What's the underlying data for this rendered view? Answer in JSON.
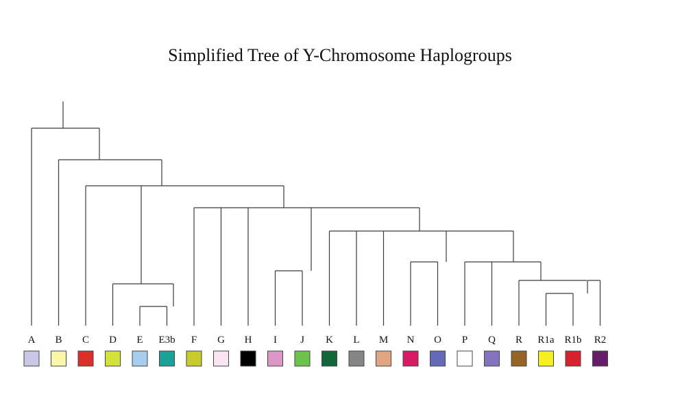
{
  "title": "Simplified Tree of Y-Chromosome Haplogroups",
  "leaves": [
    {
      "id": "A",
      "color": "#c9c6e6"
    },
    {
      "id": "B",
      "color": "#fbf7a8"
    },
    {
      "id": "C",
      "color": "#d9302a"
    },
    {
      "id": "D",
      "color": "#d2e23a"
    },
    {
      "id": "E",
      "color": "#a6cdee"
    },
    {
      "id": "E3b",
      "color": "#1aa198"
    },
    {
      "id": "F",
      "color": "#c8cb2c"
    },
    {
      "id": "G",
      "color": "#fbe4f2"
    },
    {
      "id": "H",
      "color": "#000000"
    },
    {
      "id": "I",
      "color": "#dc97c8"
    },
    {
      "id": "J",
      "color": "#6cc34a"
    },
    {
      "id": "K",
      "color": "#10683a"
    },
    {
      "id": "L",
      "color": "#858585"
    },
    {
      "id": "M",
      "color": "#e2a582"
    },
    {
      "id": "N",
      "color": "#d61b64"
    },
    {
      "id": "O",
      "color": "#6469b8"
    },
    {
      "id": "P",
      "color": "#ffffff"
    },
    {
      "id": "Q",
      "color": "#8573c0"
    },
    {
      "id": "R",
      "color": "#966525"
    },
    {
      "id": "R1a",
      "color": "#f6ef21"
    },
    {
      "id": "R1b",
      "color": "#d7222d"
    },
    {
      "id": "R2",
      "color": "#661d6a"
    }
  ],
  "tree_edges": [
    [
      "root",
      "n1"
    ],
    [
      "n1",
      "A"
    ],
    [
      "n1",
      "n2"
    ],
    [
      "n2",
      "B"
    ],
    [
      "n2",
      "n3"
    ],
    [
      "n3",
      "C"
    ],
    [
      "n3",
      "n4"
    ],
    [
      "n3",
      "n5"
    ],
    [
      "n4",
      "D"
    ],
    [
      "n4",
      "n6"
    ],
    [
      "n6",
      "E"
    ],
    [
      "n6",
      "E3b"
    ],
    [
      "n5",
      "F"
    ],
    [
      "n5",
      "G"
    ],
    [
      "n5",
      "H"
    ],
    [
      "n5",
      "n7"
    ],
    [
      "n5",
      "n8"
    ],
    [
      "n7",
      "I"
    ],
    [
      "n7",
      "J"
    ],
    [
      "n8",
      "K"
    ],
    [
      "n8",
      "L"
    ],
    [
      "n8",
      "M"
    ],
    [
      "n8",
      "n9"
    ],
    [
      "n8",
      "n10"
    ],
    [
      "n9",
      "N"
    ],
    [
      "n9",
      "O"
    ],
    [
      "n10",
      "P"
    ],
    [
      "n10",
      "Q"
    ],
    [
      "n10",
      "n11"
    ],
    [
      "n11",
      "R"
    ],
    [
      "n11",
      "n12"
    ],
    [
      "n12",
      "n13"
    ],
    [
      "n12",
      "R2"
    ],
    [
      "n13",
      "R1a"
    ],
    [
      "n13",
      "R1b"
    ]
  ]
}
